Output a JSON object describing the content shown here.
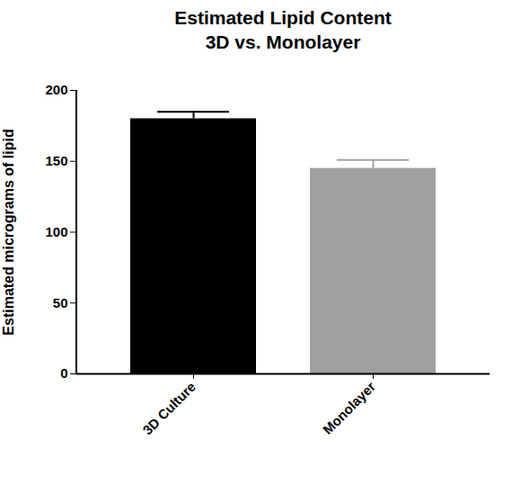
{
  "chart_data": {
    "type": "bar",
    "title": "Estimated Lipid Content\n3D vs. Monolayer",
    "y_label": "Estimated micrograms of lipid",
    "categories": [
      "3D Culture",
      "Monolayer"
    ],
    "values": [
      180,
      145
    ],
    "errors": [
      5,
      6
    ],
    "colors": [
      "#000000",
      "#a0a0a0"
    ],
    "ylim": [
      0,
      200
    ],
    "yticks": [
      0,
      50,
      100,
      150,
      200
    ],
    "grid": false
  }
}
